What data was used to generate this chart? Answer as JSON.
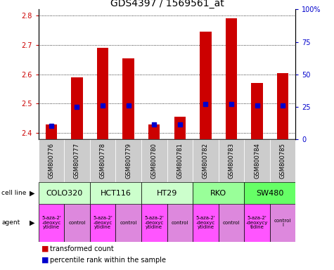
{
  "title": "GDS4397 / 1569561_at",
  "samples": [
    "GSM800776",
    "GSM800777",
    "GSM800778",
    "GSM800779",
    "GSM800780",
    "GSM800781",
    "GSM800782",
    "GSM800783",
    "GSM800784",
    "GSM800785"
  ],
  "transformed_count": [
    2.43,
    2.59,
    2.69,
    2.655,
    2.43,
    2.455,
    2.745,
    2.79,
    2.57,
    2.605
  ],
  "percentile_rank": [
    10,
    25,
    26,
    26,
    11,
    11,
    27,
    27,
    26,
    26
  ],
  "ylim_left": [
    2.38,
    2.82
  ],
  "ylim_right": [
    0,
    100
  ],
  "yticks_left": [
    2.4,
    2.5,
    2.6,
    2.7,
    2.8
  ],
  "yticks_right": [
    0,
    25,
    50,
    75,
    100
  ],
  "ytick_labels_right": [
    "0",
    "25",
    "50",
    "75",
    "100%"
  ],
  "cell_lines": [
    {
      "name": "COLO320",
      "start": 0,
      "end": 2,
      "color": "#ccffcc"
    },
    {
      "name": "HCT116",
      "start": 2,
      "end": 4,
      "color": "#ccffcc"
    },
    {
      "name": "HT29",
      "start": 4,
      "end": 6,
      "color": "#ccffcc"
    },
    {
      "name": "RKO",
      "start": 6,
      "end": 8,
      "color": "#99ff99"
    },
    {
      "name": "SW480",
      "start": 8,
      "end": 10,
      "color": "#66ff66"
    }
  ],
  "agents_text": [
    "5-aza-2'\n-deoxyc\nytidine",
    "control",
    "5-aza-2'\n-deoxyc\nytidine",
    "control",
    "5-aza-2'\n-deoxyc\nytidine",
    "control",
    "5-aza-2'\n-deoxyc\nytidine",
    "control",
    "5-aza-2'\n-deoxycy\ntidine",
    "control\nl"
  ],
  "bar_color": "#cc0000",
  "dot_color": "#0000cc",
  "grid_color": "#000000",
  "left_axis_color": "#cc0000",
  "right_axis_color": "#0000cc",
  "sample_bg_color": "#cccccc",
  "agent_color_odd": "#ff55ff",
  "agent_color_even": "#dd88dd",
  "title_fontsize": 10,
  "tick_fontsize": 7,
  "sample_fontsize": 6,
  "cell_fontsize": 8,
  "agent_fontsize": 5,
  "legend_fontsize": 7
}
